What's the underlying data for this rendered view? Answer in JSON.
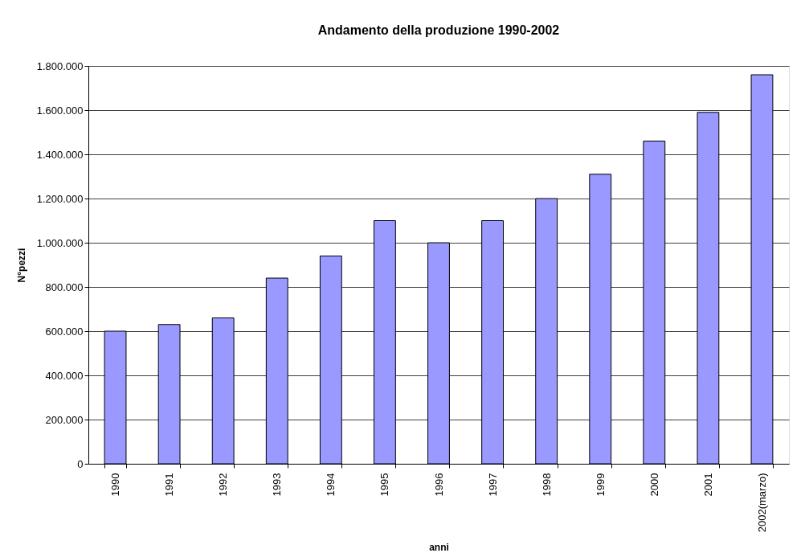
{
  "chart_data": {
    "type": "bar",
    "title": "Andamento della produzione 1990-2002",
    "xlabel": "anni",
    "ylabel": "N°pezzi",
    "categories": [
      "1990",
      "1991",
      "1992",
      "1993",
      "1994",
      "1995",
      "1996",
      "1997",
      "1998",
      "1999",
      "2000",
      "2001",
      "2002(marzo)"
    ],
    "values": [
      600000,
      630000,
      660000,
      840000,
      940000,
      1100000,
      1000000,
      1100000,
      1200000,
      1310000,
      1460000,
      1590000,
      1760000
    ],
    "color": "#9999ff",
    "ylim": [
      0,
      1800000
    ],
    "yticks": [
      0,
      {
        "value": 200000,
        "label": "200.000"
      },
      {
        "value": 400000,
        "label": "400.000"
      },
      {
        "value": 600000,
        "label": "600.000"
      },
      {
        "value": 800000,
        "label": "800.000"
      },
      {
        "value": 1000000,
        "label": "1.000.000"
      },
      {
        "value": 1200000,
        "label": "1.200.000"
      },
      {
        "value": 1400000,
        "label": "1.400.000"
      },
      {
        "value": 1600000,
        "label": "1.600.000"
      },
      {
        "value": 1800000,
        "label": "1.800.000"
      }
    ],
    "grid": "y"
  }
}
